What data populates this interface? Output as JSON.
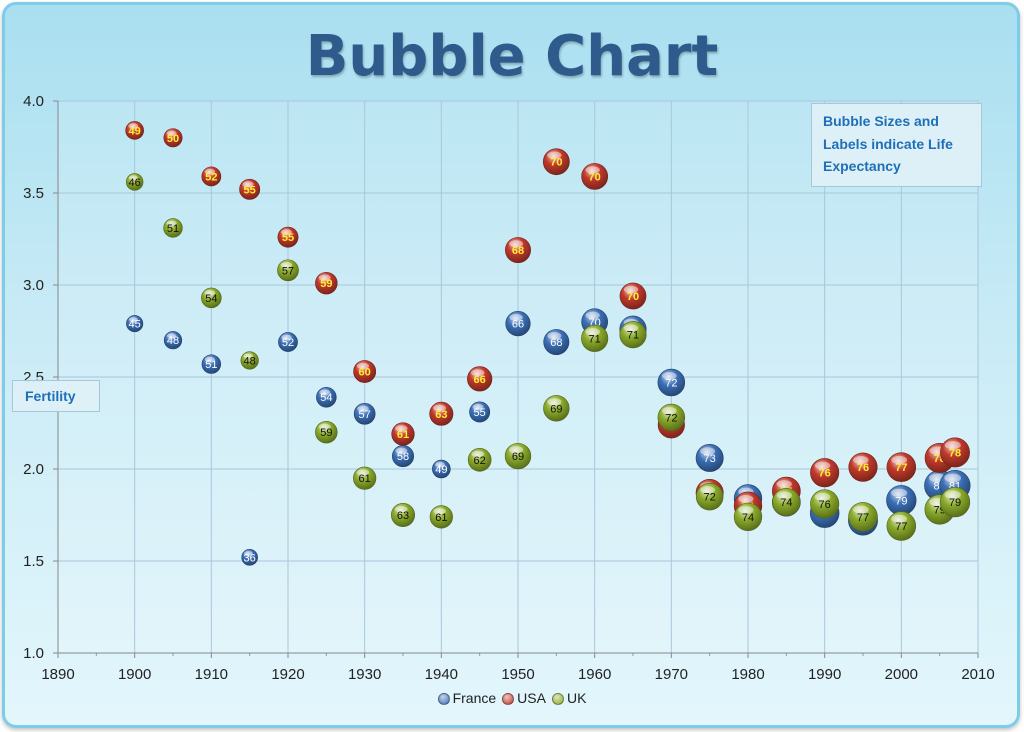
{
  "chart_data": {
    "type": "bubble",
    "title": "Bubble Chart",
    "ylabel": "Fertility",
    "annotation": "Bubble Sizes and Labels indicate Life Expectancy",
    "xlim": [
      1890,
      2010
    ],
    "ylim": [
      1.0,
      4.0
    ],
    "xticks": [
      "1890",
      "1900",
      "1910",
      "1920",
      "1930",
      "1940",
      "1950",
      "1960",
      "1970",
      "1980",
      "1990",
      "2000",
      "2010"
    ],
    "yticks": [
      "1.0",
      "1.5",
      "2.0",
      "2.5",
      "3.0",
      "3.5",
      "4.0"
    ],
    "grid": true,
    "legend_position": "bottom",
    "series": [
      {
        "name": "France",
        "color": "#3b6fb6",
        "points": [
          [
            1900,
            2.79,
            45
          ],
          [
            1905,
            2.7,
            48
          ],
          [
            1910,
            2.57,
            51
          ],
          [
            1915,
            1.52,
            36
          ],
          [
            1920,
            2.69,
            52
          ],
          [
            1925,
            2.39,
            54
          ],
          [
            1930,
            2.3,
            57
          ],
          [
            1935,
            2.07,
            58
          ],
          [
            1940,
            2.0,
            49
          ],
          [
            1945,
            2.31,
            55
          ],
          [
            1950,
            2.79,
            66
          ],
          [
            1955,
            2.69,
            68
          ],
          [
            1960,
            2.8,
            70
          ],
          [
            1965,
            2.76,
            71
          ],
          [
            1970,
            2.47,
            72
          ],
          [
            1975,
            2.06,
            73
          ],
          [
            1980,
            1.84,
            74
          ],
          [
            1985,
            1.82,
            75
          ],
          [
            1990,
            1.76,
            77
          ],
          [
            1995,
            1.72,
            78
          ],
          [
            2000,
            1.83,
            79
          ],
          [
            2005,
            1.91,
            81
          ],
          [
            2007,
            1.91,
            81
          ]
        ]
      },
      {
        "name": "USA",
        "color": "#c0392b",
        "points": [
          [
            1900,
            3.84,
            49
          ],
          [
            1905,
            3.8,
            50
          ],
          [
            1910,
            3.59,
            52
          ],
          [
            1915,
            3.52,
            55
          ],
          [
            1920,
            3.26,
            55
          ],
          [
            1925,
            3.01,
            59
          ],
          [
            1930,
            2.53,
            60
          ],
          [
            1935,
            2.19,
            61
          ],
          [
            1940,
            2.3,
            63
          ],
          [
            1945,
            2.49,
            66
          ],
          [
            1950,
            3.19,
            68
          ],
          [
            1955,
            3.67,
            70
          ],
          [
            1960,
            3.59,
            70
          ],
          [
            1965,
            2.94,
            70
          ],
          [
            1970,
            2.24,
            71
          ],
          [
            1975,
            1.87,
            73
          ],
          [
            1980,
            1.8,
            74
          ],
          [
            1985,
            1.88,
            75
          ],
          [
            1990,
            1.98,
            76
          ],
          [
            1995,
            2.01,
            76
          ],
          [
            2000,
            2.01,
            77
          ],
          [
            2005,
            2.06,
            78
          ],
          [
            2007,
            2.09,
            78
          ]
        ]
      },
      {
        "name": "UK",
        "color": "#8aaa2a",
        "points": [
          [
            1900,
            3.56,
            46
          ],
          [
            1905,
            3.31,
            51
          ],
          [
            1910,
            2.93,
            54
          ],
          [
            1915,
            2.59,
            48
          ],
          [
            1920,
            3.08,
            57
          ],
          [
            1925,
            2.2,
            59
          ],
          [
            1930,
            1.95,
            61
          ],
          [
            1935,
            1.75,
            63
          ],
          [
            1940,
            1.74,
            61
          ],
          [
            1945,
            2.05,
            62
          ],
          [
            1950,
            2.07,
            69
          ],
          [
            1955,
            2.33,
            69
          ],
          [
            1960,
            2.71,
            71
          ],
          [
            1965,
            2.73,
            71
          ],
          [
            1970,
            2.28,
            72
          ],
          [
            1975,
            1.85,
            72
          ],
          [
            1980,
            1.74,
            74
          ],
          [
            1985,
            1.82,
            74
          ],
          [
            1990,
            1.81,
            76
          ],
          [
            1995,
            1.74,
            77
          ],
          [
            2000,
            1.69,
            77
          ],
          [
            2005,
            1.78,
            79
          ],
          [
            2007,
            1.82,
            79
          ]
        ]
      }
    ]
  }
}
